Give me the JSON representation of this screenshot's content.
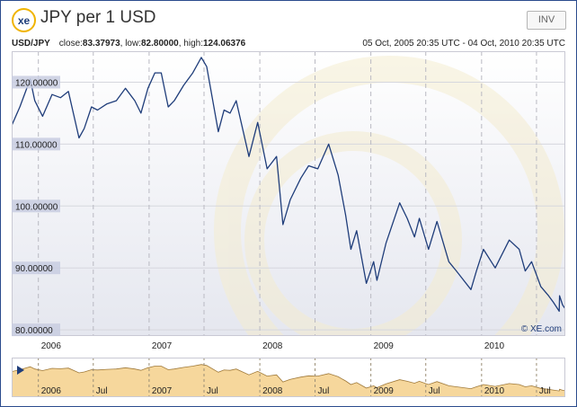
{
  "header": {
    "logo_text": "xe",
    "title": "JPY per 1 USD",
    "invert_label": "INV"
  },
  "info": {
    "pair": "USD/JPY",
    "close_label": "close:",
    "close_value": "83.37973",
    "low_label": "low:",
    "low_value": "82.80000",
    "high_label": "high:",
    "high_value": "124.06376",
    "date_range": "05 Oct, 2005 20:35 UTC - 04 Oct, 2010 20:35 UTC"
  },
  "colors": {
    "line": "#1f3d7a",
    "plot_bg_top": "#ffffff",
    "plot_bg_bottom": "#e5e7ef",
    "label_bg": "#c8cce0",
    "nav_fill": "#f6d79c",
    "nav_stroke": "#a07a3a",
    "frame": "#2a4b8d",
    "watermark": "#f4ecd0"
  },
  "chart_data": {
    "type": "line",
    "series": [
      {
        "points": [
          [
            "2005-10-05",
            113.0
          ],
          [
            "2005-11-01",
            116.0
          ],
          [
            "2005-12-05",
            120.5
          ],
          [
            "2005-12-20",
            117.0
          ],
          [
            "2006-01-15",
            114.5
          ],
          [
            "2006-02-15",
            118.0
          ],
          [
            "2006-03-15",
            117.5
          ],
          [
            "2006-04-10",
            118.5
          ],
          [
            "2006-05-15",
            111.0
          ],
          [
            "2006-06-01",
            112.5
          ],
          [
            "2006-06-25",
            116.0
          ],
          [
            "2006-07-15",
            115.5
          ],
          [
            "2006-08-15",
            116.5
          ],
          [
            "2006-09-15",
            117.0
          ],
          [
            "2006-10-15",
            119.0
          ],
          [
            "2006-11-15",
            117.0
          ],
          [
            "2006-12-05",
            115.0
          ],
          [
            "2006-12-28",
            119.0
          ],
          [
            "2007-01-20",
            121.5
          ],
          [
            "2007-02-10",
            121.5
          ],
          [
            "2007-03-05",
            116.0
          ],
          [
            "2007-03-25",
            117.0
          ],
          [
            "2007-04-25",
            119.5
          ],
          [
            "2007-05-25",
            121.5
          ],
          [
            "2007-06-22",
            124.0
          ],
          [
            "2007-07-10",
            122.5
          ],
          [
            "2007-08-17",
            112.0
          ],
          [
            "2007-09-05",
            115.5
          ],
          [
            "2007-09-25",
            115.0
          ],
          [
            "2007-10-15",
            117.0
          ],
          [
            "2007-11-26",
            108.0
          ],
          [
            "2007-12-25",
            113.5
          ],
          [
            "2008-01-25",
            106.0
          ],
          [
            "2008-02-25",
            108.0
          ],
          [
            "2008-03-17",
            97.0
          ],
          [
            "2008-04-10",
            101.0
          ],
          [
            "2008-05-15",
            104.5
          ],
          [
            "2008-06-10",
            106.5
          ],
          [
            "2008-07-10",
            106.0
          ],
          [
            "2008-08-15",
            110.0
          ],
          [
            "2008-09-15",
            105.0
          ],
          [
            "2008-10-10",
            98.5
          ],
          [
            "2008-10-27",
            93.0
          ],
          [
            "2008-11-15",
            96.0
          ],
          [
            "2008-12-17",
            87.5
          ],
          [
            "2009-01-10",
            91.0
          ],
          [
            "2009-01-21",
            88.0
          ],
          [
            "2009-02-20",
            94.0
          ],
          [
            "2009-04-06",
            100.5
          ],
          [
            "2009-05-01",
            98.0
          ],
          [
            "2009-05-25",
            95.0
          ],
          [
            "2009-06-10",
            98.0
          ],
          [
            "2009-07-10",
            93.0
          ],
          [
            "2009-08-07",
            97.5
          ],
          [
            "2009-09-15",
            91.0
          ],
          [
            "2009-10-10",
            89.5
          ],
          [
            "2009-11-27",
            86.5
          ],
          [
            "2009-12-15",
            89.5
          ],
          [
            "2010-01-07",
            93.0
          ],
          [
            "2010-02-15",
            90.0
          ],
          [
            "2010-04-02",
            94.5
          ],
          [
            "2010-05-05",
            93.0
          ],
          [
            "2010-05-25",
            89.5
          ],
          [
            "2010-06-15",
            91.0
          ],
          [
            "2010-07-15",
            87.0
          ],
          [
            "2010-08-10",
            85.5
          ],
          [
            "2010-08-25",
            84.5
          ],
          [
            "2010-09-14",
            83.0
          ],
          [
            "2010-09-15",
            85.5
          ],
          [
            "2010-09-25",
            84.0
          ],
          [
            "2010-10-04",
            83.4
          ]
        ]
      }
    ],
    "x_range": [
      "2005-10-05",
      "2010-10-04"
    ],
    "ylim": [
      79.0,
      125.0
    ],
    "y_ticks": [
      {
        "value": 80,
        "label": "80.00000"
      },
      {
        "value": 90,
        "label": "90.00000"
      },
      {
        "value": 100,
        "label": "100.00000"
      },
      {
        "value": 110,
        "label": "110.00000"
      },
      {
        "value": 120,
        "label": "120.00000"
      }
    ],
    "x_year_ticks": [
      {
        "date": "2006-01-01",
        "label": "2006"
      },
      {
        "date": "2007-01-01",
        "label": "2007"
      },
      {
        "date": "2008-01-01",
        "label": "2008"
      },
      {
        "date": "2009-01-01",
        "label": "2009"
      },
      {
        "date": "2010-01-01",
        "label": "2010"
      }
    ],
    "x_mid_ticks": [
      "2006-07-01",
      "2007-07-01",
      "2008-07-01",
      "2009-07-01",
      "2010-07-01"
    ],
    "navigator_ticks": [
      {
        "date": "2006-01-01",
        "label": "2006"
      },
      {
        "date": "2006-07-01",
        "label": "Jul"
      },
      {
        "date": "2007-01-01",
        "label": "2007"
      },
      {
        "date": "2007-07-01",
        "label": "Jul"
      },
      {
        "date": "2008-01-01",
        "label": "2008"
      },
      {
        "date": "2008-07-01",
        "label": "Jul"
      },
      {
        "date": "2009-01-01",
        "label": "2009"
      },
      {
        "date": "2009-07-01",
        "label": "Jul"
      },
      {
        "date": "2010-01-01",
        "label": "2010"
      },
      {
        "date": "2010-07-01",
        "label": "Jul"
      }
    ],
    "copyright": "© XE.com",
    "grid": true
  }
}
